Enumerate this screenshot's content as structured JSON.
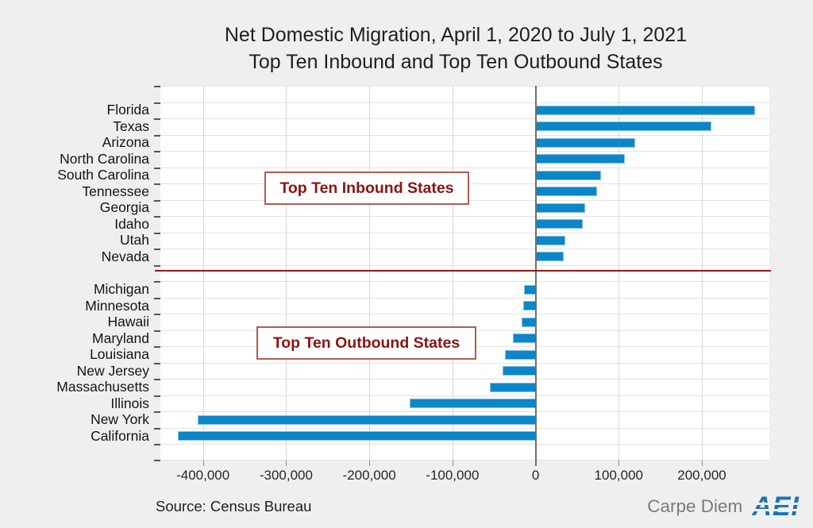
{
  "chart_data": {
    "type": "bar",
    "orientation": "horizontal",
    "title_lines": [
      "Net Domestic Migration, April 1, 2020 to July 1, 2021",
      "Top Ten Inbound and Top Ten Outbound States"
    ],
    "series": [
      {
        "name": "Top Ten Inbound States",
        "categories": [
          "Florida",
          "Texas",
          "Arizona",
          "North Carolina",
          "South Carolina",
          "Tennessee",
          "Georgia",
          "Idaho",
          "Utah",
          "Nevada"
        ],
        "values": [
          264000,
          211000,
          120000,
          107000,
          79000,
          74000,
          60000,
          57000,
          36000,
          34000
        ]
      },
      {
        "name": "Top Ten Outbound States",
        "categories": [
          "Michigan",
          "Minnesota",
          "Hawaii",
          "Maryland",
          "Louisiana",
          "New Jersey",
          "Massachusetts",
          "Illinois",
          "New York",
          "California"
        ],
        "values": [
          -14000,
          -15000,
          -17000,
          -27000,
          -37000,
          -40000,
          -55000,
          -151000,
          -406000,
          -430000
        ]
      }
    ],
    "x_ticks": [
      -400000,
      -300000,
      -200000,
      -100000,
      0,
      100000,
      200000
    ],
    "x_tick_labels": [
      "-400,000",
      "-300,000",
      "-200,000",
      "-100,000",
      "0",
      "100,000",
      "200,000"
    ],
    "xlim": [
      -451000,
      281000
    ],
    "grid": true,
    "legend": "none",
    "bar_color": "#0b86c8",
    "xlabel": "",
    "ylabel": ""
  },
  "annotations": {
    "inbound": "Top Ten Inbound States",
    "outbound": "Top Ten Outbound States"
  },
  "source": "Source: Census Bureau",
  "branding": {
    "carpe_diem": "Carpe Diem",
    "aei": "AEI"
  },
  "colors": {
    "bar": "#0b86c8",
    "dark_red": "#8e1b1b",
    "annotation_border": "#b25b52",
    "annotation_text": "#8b1412",
    "background": "#efefef",
    "plot_background": "#ffffff",
    "gridline": "#d9d9d9",
    "zero_line": "#6e6e6e",
    "aei_blue": "#1a74b5",
    "carpe_diem_gray": "#7b7b7b"
  }
}
